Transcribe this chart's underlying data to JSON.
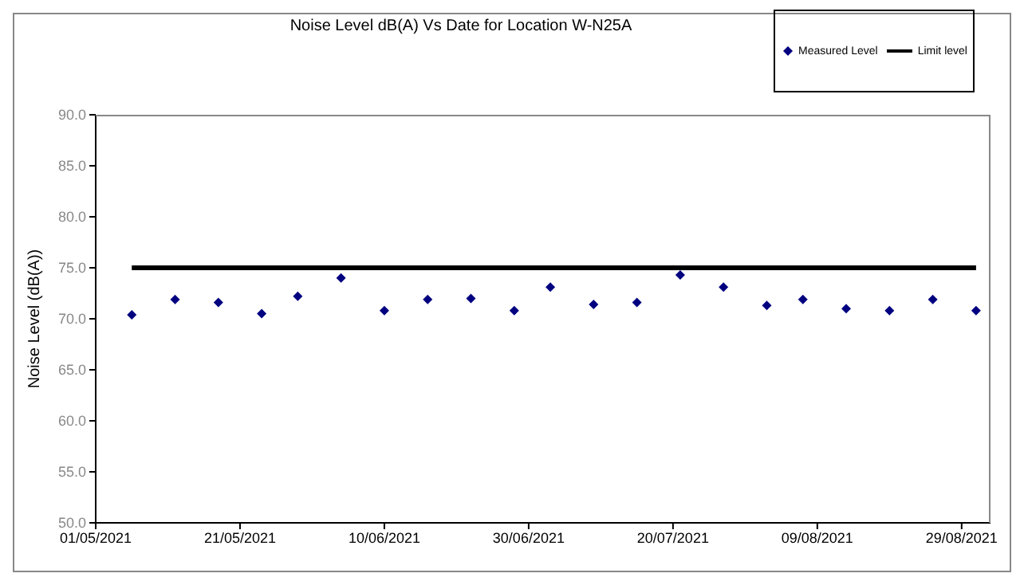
{
  "chart_data": {
    "type": "scatter",
    "title": "Noise Level dB(A) Vs Date for Location W-N25A",
    "ylabel": "Noise Level (dB(A))",
    "x": [
      "2021-05-06",
      "2021-05-12",
      "2021-05-18",
      "2021-05-24",
      "2021-05-29",
      "2021-06-04",
      "2021-06-10",
      "2021-06-16",
      "2021-06-22",
      "2021-06-28",
      "2021-07-03",
      "2021-07-09",
      "2021-07-15",
      "2021-07-21",
      "2021-07-27",
      "2021-08-02",
      "2021-08-07",
      "2021-08-13",
      "2021-08-19",
      "2021-08-25",
      "2021-08-31"
    ],
    "series": [
      {
        "name": "Measured Level",
        "color": "#000080",
        "marker": "diamond",
        "values": [
          70.4,
          71.9,
          71.6,
          70.5,
          72.2,
          74.0,
          70.8,
          71.9,
          72.0,
          70.8,
          73.1,
          71.4,
          71.6,
          74.3,
          73.1,
          71.3,
          71.9,
          71.0,
          70.8,
          71.9,
          70.8
        ]
      },
      {
        "name": "Limit level",
        "type": "line",
        "color": "#000000",
        "line_style": "solid",
        "marker": "none",
        "x": [
          "2021-05-06",
          "2021-08-31"
        ],
        "values": [
          75,
          75
        ]
      }
    ],
    "xlim": [
      "2021-05-01",
      "2021-09-02"
    ],
    "xticks": [
      {
        "value": "2021-05-01",
        "label": "01/05/2021"
      },
      {
        "value": "2021-05-21",
        "label": "21/05/2021"
      },
      {
        "value": "2021-06-10",
        "label": "10/06/2021"
      },
      {
        "value": "2021-06-30",
        "label": "30/06/2021"
      },
      {
        "value": "2021-07-20",
        "label": "20/07/2021"
      },
      {
        "value": "2021-08-09",
        "label": "09/08/2021"
      },
      {
        "value": "2021-08-29",
        "label": "29/08/2021"
      }
    ],
    "ylim": [
      50,
      90
    ],
    "yticks": [
      {
        "value": 50,
        "label": "50.0"
      },
      {
        "value": 55,
        "label": "55.0"
      },
      {
        "value": 60,
        "label": "60.0"
      },
      {
        "value": 65,
        "label": "65.0"
      },
      {
        "value": 70,
        "label": "70.0"
      },
      {
        "value": 75,
        "label": "75.0"
      },
      {
        "value": 80,
        "label": "80.0"
      },
      {
        "value": 85,
        "label": "85.0"
      },
      {
        "value": 90,
        "label": "90.0"
      }
    ],
    "grid": false,
    "legend": "top right"
  }
}
